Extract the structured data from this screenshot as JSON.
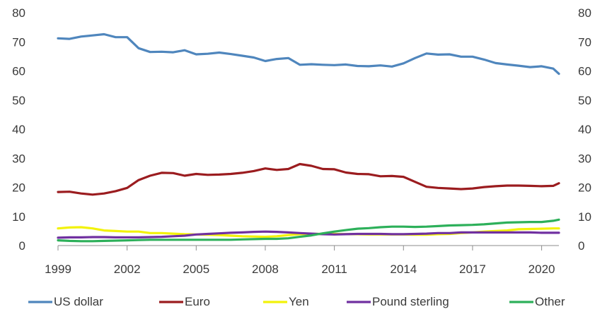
{
  "chart_data": {
    "type": "line",
    "title": "",
    "xlabel": "",
    "ylabel": "",
    "xlim": [
      1999,
      2020.75
    ],
    "ylim": [
      0,
      80
    ],
    "x_ticks": [
      1999,
      2002,
      2005,
      2008,
      2011,
      2014,
      2017,
      2020
    ],
    "x_tick_labels": [
      "1999",
      "2002",
      "2005",
      "2008",
      "2011",
      "2014",
      "2017",
      "2020"
    ],
    "y_ticks": [
      0,
      10,
      20,
      30,
      40,
      50,
      60,
      70,
      80
    ],
    "y_tick_labels": [
      "0",
      "10",
      "20",
      "30",
      "40",
      "50",
      "60",
      "70",
      "80"
    ],
    "secondary_y_axis": true,
    "grid": false,
    "legend_position": "bottom",
    "x": [
      1999.0,
      1999.5,
      2000.0,
      2000.5,
      2001.0,
      2001.5,
      2002.0,
      2002.5,
      2003.0,
      2003.5,
      2004.0,
      2004.5,
      2005.0,
      2005.5,
      2006.0,
      2006.5,
      2007.0,
      2007.5,
      2008.0,
      2008.5,
      2009.0,
      2009.5,
      2010.0,
      2010.5,
      2011.0,
      2011.5,
      2012.0,
      2012.5,
      2013.0,
      2013.5,
      2014.0,
      2014.5,
      2015.0,
      2015.5,
      2016.0,
      2016.5,
      2017.0,
      2017.5,
      2018.0,
      2018.5,
      2019.0,
      2019.5,
      2020.0,
      2020.5,
      2020.75
    ],
    "series": [
      {
        "name": "US dollar",
        "color": "#4f86bd",
        "values": [
          71.2,
          71.0,
          71.8,
          72.2,
          72.6,
          71.6,
          71.6,
          67.8,
          66.5,
          66.6,
          66.4,
          67.1,
          65.7,
          65.9,
          66.3,
          65.8,
          65.2,
          64.6,
          63.4,
          64.1,
          64.4,
          62.1,
          62.3,
          62.1,
          62.0,
          62.2,
          61.7,
          61.6,
          61.9,
          61.5,
          62.6,
          64.4,
          66.0,
          65.6,
          65.7,
          64.9,
          64.9,
          63.9,
          62.7,
          62.2,
          61.8,
          61.3,
          61.6,
          60.8,
          59.0
        ]
      },
      {
        "name": "Euro",
        "color": "#9b1c1f",
        "values": [
          18.4,
          18.5,
          17.9,
          17.5,
          17.9,
          18.7,
          19.8,
          22.5,
          24.0,
          25.0,
          24.9,
          24.0,
          24.6,
          24.3,
          24.4,
          24.6,
          25.0,
          25.6,
          26.5,
          26.0,
          26.3,
          28.0,
          27.4,
          26.3,
          26.2,
          25.1,
          24.6,
          24.5,
          23.8,
          23.9,
          23.6,
          21.9,
          20.2,
          19.8,
          19.6,
          19.4,
          19.6,
          20.1,
          20.4,
          20.6,
          20.6,
          20.5,
          20.4,
          20.5,
          21.4
        ]
      },
      {
        "name": "Yen",
        "color": "#f2f20a",
        "values": [
          5.9,
          6.2,
          6.3,
          5.9,
          5.2,
          5.0,
          4.8,
          4.8,
          4.3,
          4.3,
          4.1,
          3.9,
          3.8,
          3.7,
          3.6,
          3.4,
          3.2,
          3.1,
          3.0,
          3.2,
          3.6,
          3.9,
          4.0,
          4.0,
          4.0,
          3.9,
          3.9,
          3.8,
          3.8,
          3.8,
          3.8,
          3.7,
          3.7,
          3.9,
          4.0,
          4.3,
          4.5,
          4.8,
          5.0,
          5.2,
          5.6,
          5.7,
          5.8,
          5.9,
          5.9
        ]
      },
      {
        "name": "Pound sterling",
        "color": "#7030a0",
        "values": [
          2.7,
          2.8,
          2.8,
          2.9,
          2.9,
          2.8,
          2.8,
          2.8,
          2.9,
          3.0,
          3.2,
          3.4,
          3.8,
          4.0,
          4.2,
          4.4,
          4.5,
          4.7,
          4.8,
          4.7,
          4.5,
          4.3,
          4.1,
          3.9,
          3.8,
          3.9,
          4.0,
          4.0,
          4.0,
          3.9,
          3.9,
          4.0,
          4.1,
          4.3,
          4.3,
          4.5,
          4.5,
          4.5,
          4.5,
          4.5,
          4.5,
          4.5,
          4.4,
          4.4,
          4.4
        ]
      },
      {
        "name": "Other",
        "color": "#2db05a",
        "values": [
          1.8,
          1.6,
          1.5,
          1.5,
          1.6,
          1.7,
          1.8,
          1.9,
          2.0,
          2.0,
          2.0,
          2.0,
          2.0,
          2.0,
          2.0,
          2.0,
          2.1,
          2.2,
          2.3,
          2.3,
          2.5,
          3.0,
          3.5,
          4.2,
          4.8,
          5.3,
          5.8,
          6.0,
          6.3,
          6.5,
          6.5,
          6.4,
          6.5,
          6.7,
          6.9,
          7.0,
          7.1,
          7.3,
          7.6,
          7.9,
          8.0,
          8.1,
          8.1,
          8.5,
          8.9
        ]
      }
    ]
  }
}
